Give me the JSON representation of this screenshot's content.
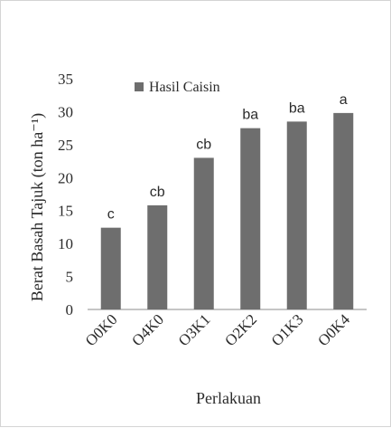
{
  "chart_data": {
    "type": "bar",
    "categories": [
      "O0K0",
      "O4K0",
      "O3K1",
      "O2K2",
      "O1K3",
      "O0K4"
    ],
    "series": [
      {
        "name": "Hasil  Caisin",
        "values": [
          12.4,
          15.8,
          23.0,
          27.5,
          28.5,
          29.8
        ],
        "labels": [
          "c",
          "cb",
          "cb",
          "ba",
          "ba",
          "a"
        ]
      }
    ],
    "xlabel": "Perlakuan",
    "ylabel": "Berat Basah Tajuk (ton ha⁻¹)",
    "ylim": [
      0,
      35
    ],
    "yticks": [
      "0",
      "5",
      "10",
      "15",
      "20",
      "25",
      "30",
      "35"
    ],
    "grid": false,
    "legend_position": "top-left",
    "colors": {
      "bar": "#6e6e6e",
      "axis": "#8c8c8c",
      "text": "#2b2b2b"
    }
  }
}
